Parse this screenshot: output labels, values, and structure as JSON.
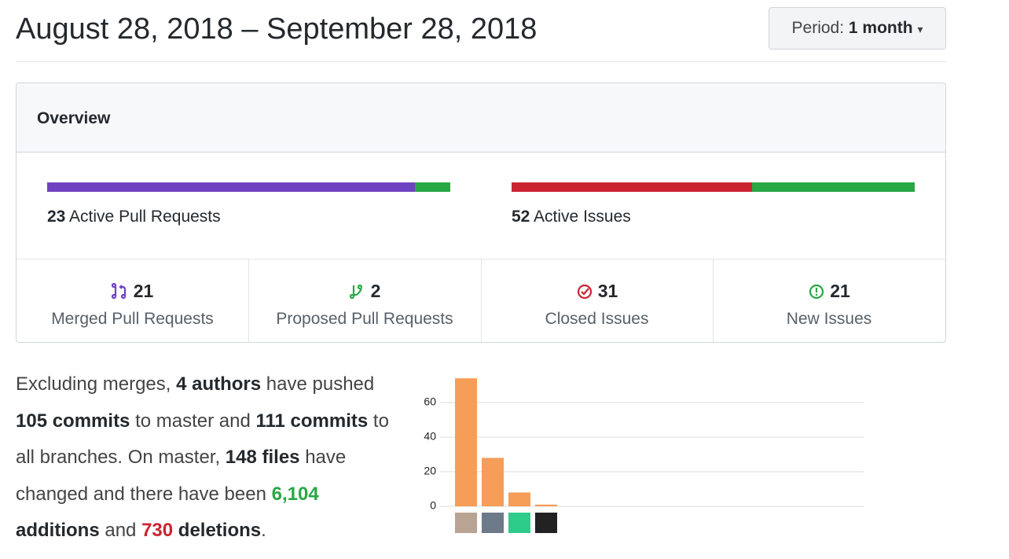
{
  "header": {
    "title": "August 28, 2018 – September 28, 2018",
    "period_label": "Period:",
    "period_value": "1 month"
  },
  "overview": {
    "title": "Overview",
    "pull_requests": {
      "count": 23,
      "label": "Active Pull Requests"
    },
    "issues": {
      "count": 52,
      "label": "Active Issues"
    },
    "stats": [
      {
        "count": 21,
        "label": "Merged Pull Requests",
        "color": "#6f42c1"
      },
      {
        "count": 2,
        "label": "Proposed Pull Requests",
        "color": "#28a745"
      },
      {
        "count": 31,
        "label": "Closed Issues",
        "color": "#cb2431"
      },
      {
        "count": 21,
        "label": "New Issues",
        "color": "#28a745"
      }
    ]
  },
  "summary": [
    "Excluding merges, ",
    "4 authors",
    " have pushed ",
    "105 commits",
    " to master and ",
    "111 commits",
    " to all branches. On master, ",
    "148 files",
    " have changed and there have been ",
    "6,104",
    " additions",
    " and ",
    "730",
    " deletions",
    "."
  ],
  "chart_data": {
    "type": "bar",
    "categories": [
      null,
      null,
      null,
      null
    ],
    "values": [
      74,
      28,
      8,
      1
    ],
    "color": "#f69d57",
    "ylim": [
      0,
      75
    ],
    "yticks": [
      0,
      20,
      40,
      60
    ],
    "grid": true
  }
}
